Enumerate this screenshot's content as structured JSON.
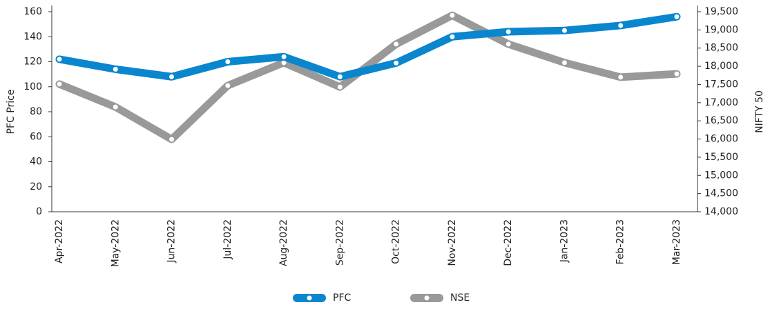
{
  "chart_data": {
    "type": "line",
    "categories": [
      "Apr-2022",
      "May-2022",
      "Jun-2022",
      "Jul-2022",
      "Aug-2022",
      "Sep-2022",
      "Oct-2022",
      "Nov-2022",
      "Dec-2022",
      "Jan-2023",
      "Feb-2023",
      "Mar-2023"
    ],
    "series": [
      {
        "name": "PFC",
        "color": "#0a86cf",
        "values": [
          122,
          114,
          108,
          120,
          124,
          108,
          119,
          140,
          144,
          145,
          149,
          156
        ]
      },
      {
        "name": "NSE",
        "color": "#999999",
        "axis": "y2",
        "values": [
          17510,
          16880,
          15990,
          17470,
          18100,
          17430,
          18610,
          19400,
          18610,
          18100,
          17700,
          17790
        ]
      }
    ],
    "ylabel": "PFC Price",
    "y2label": "NIFTY 50",
    "ylim": [
      0,
      160
    ],
    "yticks": [
      0,
      20,
      40,
      60,
      80,
      100,
      120,
      140,
      160
    ],
    "y2lim": [
      14000,
      19500
    ],
    "y2ticks": [
      {
        "value": 14000,
        "label": "14,000"
      },
      {
        "value": 14500,
        "label": "14,500"
      },
      {
        "value": 15000,
        "label": "15,000"
      },
      {
        "value": 15500,
        "label": "15,500"
      },
      {
        "value": 16000,
        "label": "16,000"
      },
      {
        "value": 16500,
        "label": "16,500"
      },
      {
        "value": 17000,
        "label": "17,000"
      },
      {
        "value": 17500,
        "label": "17,500"
      },
      {
        "value": 18000,
        "label": "18,000"
      },
      {
        "value": 18500,
        "label": "18,500"
      },
      {
        "value": 19000,
        "label": "19,000"
      },
      {
        "value": 19500,
        "label": "19,500"
      }
    ],
    "legend": "bottom"
  }
}
